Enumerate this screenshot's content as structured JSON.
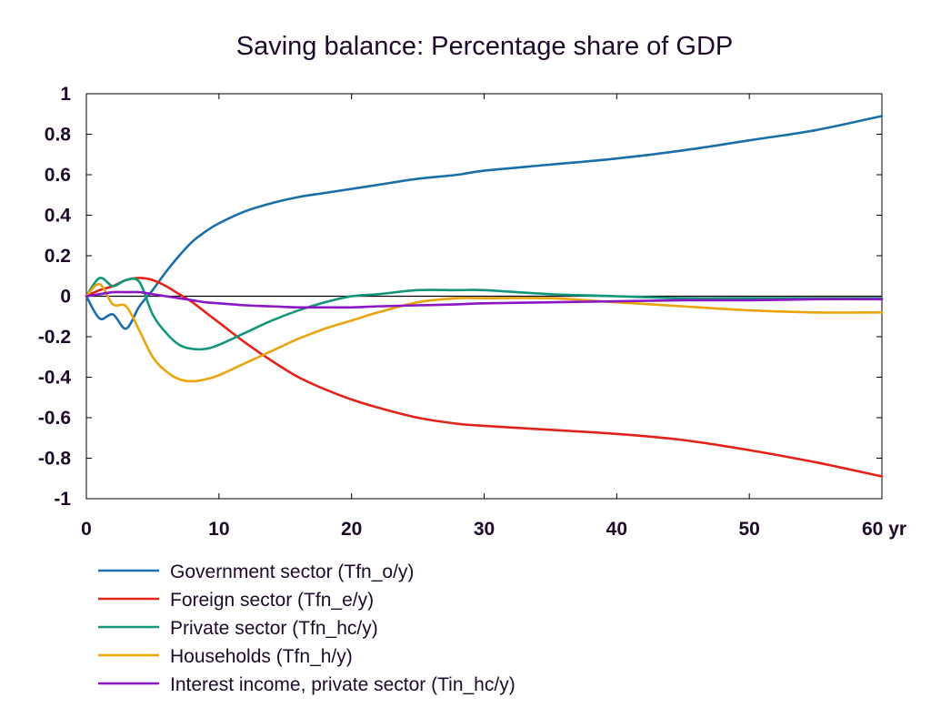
{
  "chart_data": {
    "type": "line",
    "title": "Saving balance: Percentage share of GDP",
    "xlabel": "",
    "ylabel": "",
    "x_unit_label": "yr",
    "xlim": [
      0,
      60
    ],
    "ylim": [
      -1,
      1
    ],
    "x_ticks": [
      0,
      10,
      20,
      30,
      40,
      50,
      60
    ],
    "x_tick_labels": [
      "0",
      "10",
      "20",
      "30",
      "40",
      "50",
      "60 yr"
    ],
    "y_ticks": [
      1,
      0.8,
      0.6,
      0.4,
      0.2,
      0,
      -0.2,
      -0.4,
      -0.6,
      -0.8,
      -1
    ],
    "y_tick_labels": [
      "1",
      "0.8",
      "0.6",
      "0.4",
      "0.2",
      "0",
      "-0.2",
      "-0.4",
      "-0.6",
      "-0.8",
      "-1"
    ],
    "grid": false,
    "zero_line": true,
    "legend_position": "bottom",
    "series": [
      {
        "name": "Government sector (Tfn_o/y)",
        "color": "#1a6fa8",
        "x": [
          0,
          1,
          2,
          3,
          4,
          5,
          6,
          7,
          8,
          9,
          10,
          12,
          14,
          16,
          18,
          20,
          22,
          25,
          28,
          30,
          35,
          40,
          45,
          50,
          55,
          60
        ],
        "y": [
          0,
          -0.11,
          -0.09,
          -0.16,
          -0.05,
          0.03,
          0.12,
          0.2,
          0.27,
          0.32,
          0.36,
          0.42,
          0.46,
          0.49,
          0.51,
          0.53,
          0.55,
          0.58,
          0.6,
          0.62,
          0.65,
          0.68,
          0.72,
          0.77,
          0.82,
          0.89
        ]
      },
      {
        "name": "Foreign sector (Tfn_e/y)",
        "color": "#e2231a",
        "x": [
          0,
          1,
          2,
          3,
          4,
          5,
          6,
          7,
          8,
          9,
          10,
          12,
          14,
          16,
          18,
          20,
          22,
          25,
          28,
          30,
          35,
          40,
          45,
          50,
          55,
          60
        ],
        "y": [
          0,
          0.03,
          0.05,
          0.08,
          0.09,
          0.08,
          0.05,
          0.01,
          -0.03,
          -0.08,
          -0.13,
          -0.23,
          -0.32,
          -0.4,
          -0.46,
          -0.51,
          -0.55,
          -0.6,
          -0.63,
          -0.64,
          -0.66,
          -0.68,
          -0.71,
          -0.76,
          -0.82,
          -0.89
        ]
      },
      {
        "name": "Private sector (Tfn_hc/y)",
        "color": "#12967a",
        "x": [
          0,
          1,
          2,
          3,
          4,
          5,
          6,
          7,
          8,
          9,
          10,
          12,
          14,
          16,
          18,
          20,
          22,
          25,
          28,
          30,
          35,
          40,
          45,
          50,
          55,
          60
        ],
        "y": [
          0,
          0.09,
          0.05,
          0.08,
          0.07,
          -0.09,
          -0.18,
          -0.24,
          -0.26,
          -0.26,
          -0.24,
          -0.18,
          -0.12,
          -0.07,
          -0.03,
          0,
          0.01,
          0.03,
          0.03,
          0.03,
          0.01,
          0,
          -0.01,
          -0.01,
          -0.01,
          -0.01
        ]
      },
      {
        "name": "Households (Tfn_h/y)",
        "color": "#e8a50e",
        "x": [
          0,
          1,
          2,
          3,
          4,
          5,
          6,
          7,
          8,
          9,
          10,
          12,
          14,
          16,
          18,
          20,
          22,
          25,
          28,
          30,
          35,
          40,
          45,
          50,
          55,
          60
        ],
        "y": [
          0,
          0.06,
          -0.04,
          -0.05,
          -0.17,
          -0.3,
          -0.37,
          -0.41,
          -0.42,
          -0.41,
          -0.39,
          -0.33,
          -0.27,
          -0.21,
          -0.16,
          -0.12,
          -0.08,
          -0.03,
          -0.01,
          -0.01,
          -0.01,
          -0.03,
          -0.05,
          -0.07,
          -0.08,
          -0.08
        ]
      },
      {
        "name": "Interest income, private sector (Tin_hc/y)",
        "color": "#8a16c4",
        "x": [
          0,
          1,
          2,
          3,
          4,
          5,
          6,
          7,
          8,
          9,
          10,
          12,
          14,
          16,
          18,
          20,
          22,
          25,
          28,
          30,
          35,
          40,
          45,
          50,
          55,
          60
        ],
        "y": [
          0,
          0.01,
          0.02,
          0.02,
          0.02,
          0.01,
          0,
          -0.01,
          -0.02,
          -0.03,
          -0.035,
          -0.045,
          -0.05,
          -0.055,
          -0.055,
          -0.055,
          -0.05,
          -0.045,
          -0.04,
          -0.035,
          -0.03,
          -0.025,
          -0.02,
          -0.02,
          -0.015,
          -0.015
        ]
      }
    ]
  }
}
